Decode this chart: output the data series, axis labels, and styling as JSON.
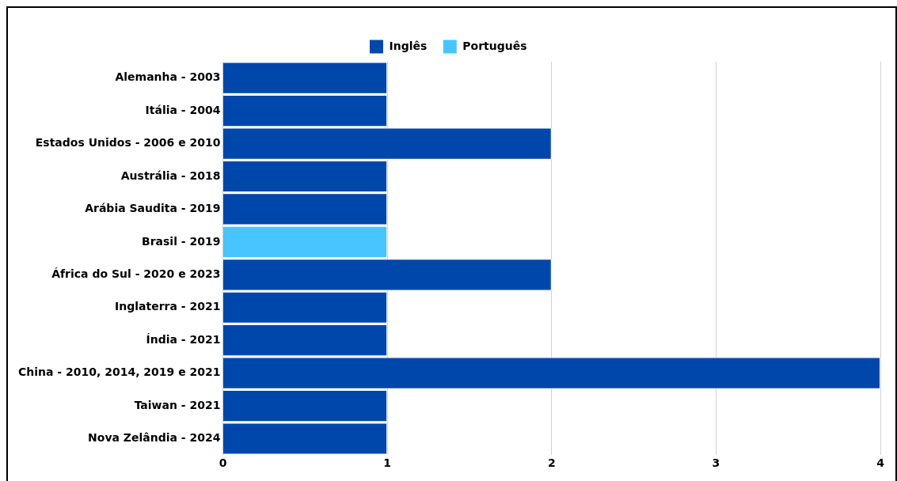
{
  "chart_data": {
    "type": "bar",
    "orientation": "horizontal",
    "stacked": true,
    "categories": [
      "Alemanha - 2003",
      "Itália - 2004",
      "Estados Unidos - 2006 e 2010",
      "Austrália - 2018",
      "Arábia Saudita - 2019",
      "Brasil - 2019",
      "África do Sul - 2020 e 2023",
      "Inglaterra - 2021",
      "Índia - 2021",
      "China - 2010, 2014, 2019 e 2021",
      "Taiwan - 2021",
      "Nova Zelândia - 2024"
    ],
    "series": [
      {
        "name": "Inglês",
        "color": "#0047ab",
        "values": [
          1,
          1,
          2,
          1,
          1,
          null,
          2,
          1,
          1,
          4,
          1,
          1
        ]
      },
      {
        "name": "Português",
        "color": "#47c5ff",
        "values": [
          null,
          null,
          null,
          null,
          null,
          1,
          null,
          null,
          null,
          null,
          null,
          null
        ]
      }
    ],
    "xlim": [
      0,
      4
    ],
    "xticks": [
      0,
      1,
      2,
      3,
      4
    ],
    "grid": "x",
    "legend": "top"
  }
}
